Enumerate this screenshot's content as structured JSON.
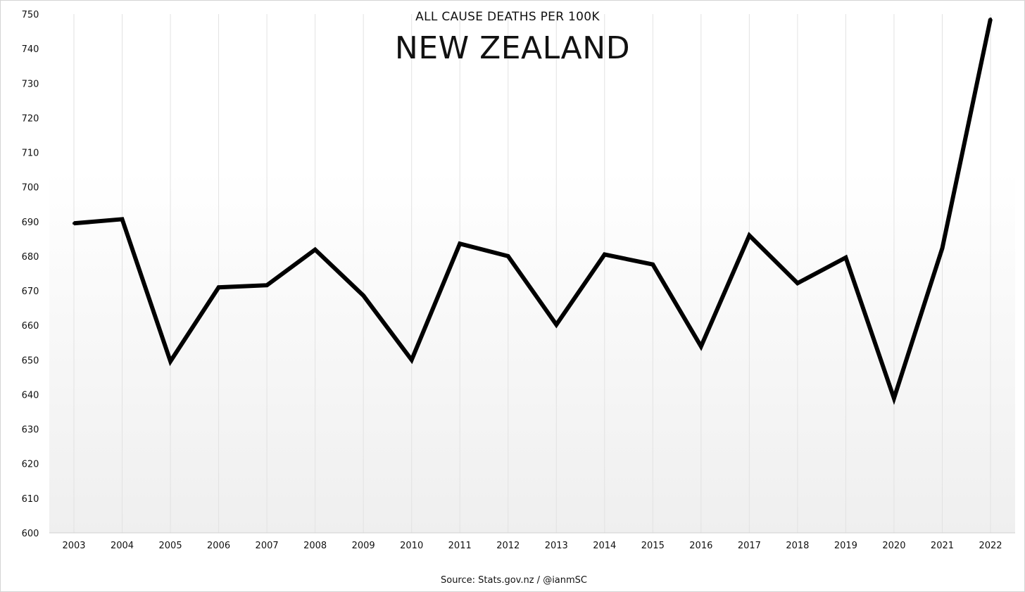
{
  "chart_data": {
    "type": "line",
    "title": "NEW ZEALAND",
    "subtitle": "ALL CAUSE DEATHS PER 100K",
    "source": "Source: Stats.gov.nz / @ianmSC",
    "xlabel": "",
    "ylabel": "",
    "ylim": [
      600,
      750
    ],
    "yticks": [
      600,
      610,
      620,
      630,
      640,
      650,
      660,
      670,
      680,
      690,
      700,
      710,
      720,
      730,
      740,
      750
    ],
    "grid": "vertical",
    "categories": [
      "2003",
      "2004",
      "2005",
      "2006",
      "2007",
      "2008",
      "2009",
      "2010",
      "2011",
      "2012",
      "2013",
      "2014",
      "2015",
      "2016",
      "2017",
      "2018",
      "2019",
      "2020",
      "2021",
      "2022"
    ],
    "series": [
      {
        "values": [
          689.5,
          690.7,
          649.6,
          671.0,
          671.6,
          681.9,
          668.6,
          650.0,
          683.6,
          680.0,
          660.2,
          680.5,
          677.6,
          653.9,
          686.0,
          672.2,
          679.6,
          638.9,
          682.3,
          748.6
        ],
        "color": "#000000"
      }
    ],
    "colors": {
      "line": "#000000",
      "grid": "#e2e2e2",
      "background_top": "#ffffff",
      "background_bottom": "#f0f0f0"
    }
  }
}
